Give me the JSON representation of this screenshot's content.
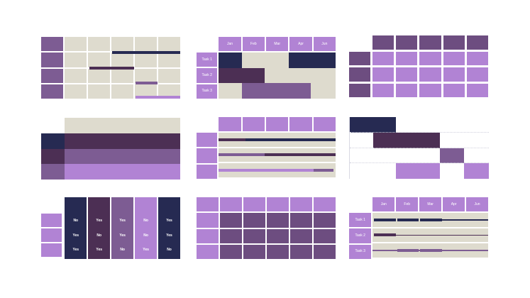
{
  "page": {
    "background": "#ffffff",
    "description": "3x3 gallery of purple Gantt chart and table slide templates"
  },
  "palette": {
    "navy": "#262a52",
    "dark_purple": "#4c2f54",
    "plum": "#6d4d80",
    "mid_purple": "#7d5c93",
    "light_purple": "#b183d4",
    "beige": "#dedbce",
    "white": "#ffffff",
    "grid_dotted": "#cfcfdc",
    "axis_line": "#d9d9e3",
    "text_on_fill": "#ffffff"
  },
  "months": [
    "Jan",
    "Feb",
    "Mar",
    "Apr",
    "Jun"
  ],
  "tasks": [
    "Task 1",
    "Task 2",
    "Task 3"
  ],
  "chart_data": [
    {
      "id": "gantt-grid",
      "type": "gantt",
      "position": "top-left",
      "rows": 4,
      "columns": 5,
      "colors": {
        "row_header": "mid_purple",
        "cell": "beige"
      },
      "bars": [
        {
          "y": 0.25,
          "start": 0.41,
          "end": 1.0,
          "color": "navy"
        },
        {
          "y": 0.5,
          "start": 0.21,
          "end": 0.6,
          "color": "dark_purple"
        },
        {
          "y": 0.75,
          "start": 0.61,
          "end": 0.8,
          "color": "mid_purple"
        },
        {
          "y": 1.0,
          "start": 0.61,
          "end": 1.0,
          "color": "light_purple"
        }
      ]
    },
    {
      "id": "gantt-blocks",
      "type": "gantt",
      "position": "top-center",
      "column_headers": "months",
      "row_headers": "tasks",
      "header_color": "light_purple",
      "body_color": "beige",
      "bars": [
        {
          "row": 0,
          "start": 0.0,
          "end": 0.2,
          "color": "navy"
        },
        {
          "row": 0,
          "start": 0.6,
          "end": 1.0,
          "color": "navy"
        },
        {
          "row": 1,
          "start": 0.0,
          "end": 0.39,
          "color": "dark_purple"
        },
        {
          "row": 2,
          "start": 0.2,
          "end": 0.79,
          "color": "mid_purple"
        }
      ]
    },
    {
      "id": "table-plum-header",
      "type": "table",
      "position": "top-right",
      "columns": 5,
      "rows": 3,
      "colors": {
        "column_header": "plum",
        "row_header": "plum",
        "body": "light_purple",
        "corner": "transparent"
      }
    },
    {
      "id": "stacked-bands",
      "type": "bar",
      "position": "middle-left",
      "header_width": 0.17,
      "top_band": {
        "color": "beige"
      },
      "rows": [
        {
          "header_color": "navy",
          "band_color": "dark_purple"
        },
        {
          "header_color": "dark_purple",
          "band_color": "mid_purple"
        },
        {
          "header_color": "mid_purple",
          "band_color": "light_purple"
        }
      ]
    },
    {
      "id": "gantt-thin-bars",
      "type": "gantt",
      "position": "middle-center",
      "column_headers": 5,
      "row_headers": 3,
      "header_color": "light_purple",
      "body_color": "beige",
      "rows": [
        {
          "segments": [
            {
              "start": 0.0,
              "end": 0.23,
              "color": "dark_purple"
            },
            {
              "start": 0.23,
              "end": 1.0,
              "color": "navy"
            }
          ]
        },
        {
          "segments": [
            {
              "start": 0.0,
              "end": 0.39,
              "color": "mid_purple"
            },
            {
              "start": 0.39,
              "end": 1.0,
              "color": "dark_purple"
            }
          ]
        },
        {
          "segments": [
            {
              "start": 0.0,
              "end": 0.81,
              "color": "light_purple"
            },
            {
              "start": 0.81,
              "end": 0.98,
              "color": "mid_purple"
            }
          ]
        }
      ]
    },
    {
      "id": "waterfall-gantt",
      "type": "gantt",
      "position": "middle-right",
      "background": "white",
      "gridlines": "dotted",
      "blocks": [
        {
          "row": 0,
          "start": 0.0,
          "end": 0.33,
          "color": "navy"
        },
        {
          "row": 1,
          "start": 0.17,
          "end": 0.65,
          "color": "dark_purple"
        },
        {
          "row": 2,
          "start": 0.65,
          "end": 0.82,
          "color": "mid_purple"
        },
        {
          "row": 3,
          "start": 0.33,
          "end": 0.65,
          "color": "light_purple"
        },
        {
          "row": 3,
          "start": 0.82,
          "end": 1.0,
          "color": "light_purple"
        }
      ]
    },
    {
      "id": "yes-no-matrix",
      "type": "table",
      "position": "bottom-left",
      "row_header_color": "light_purple",
      "row_count": 3,
      "columns": [
        {
          "color": "navy",
          "values": [
            "No",
            "Yes",
            "Yes"
          ]
        },
        {
          "color": "dark_purple",
          "values": [
            "Yes",
            "No",
            "Yes"
          ]
        },
        {
          "color": "mid_purple",
          "values": [
            "Yes",
            "Yes",
            "No"
          ]
        },
        {
          "color": "light_purple",
          "values": [
            "No",
            "No",
            "Yes"
          ]
        },
        {
          "color": "navy",
          "values": [
            "Yes",
            "Yes",
            "No"
          ]
        }
      ]
    },
    {
      "id": "purple-table",
      "type": "table",
      "position": "bottom-center",
      "columns": 5,
      "rows": 3,
      "colors": {
        "column_header": "light_purple",
        "row_header": "light_purple",
        "body": "plum",
        "corner": "light_purple"
      }
    },
    {
      "id": "timeline-gantt",
      "type": "gantt",
      "position": "bottom-right",
      "column_headers": "months",
      "row_headers": "tasks",
      "header_color": "light_purple",
      "body_color": "beige",
      "rows": [
        {
          "task": "Task 1",
          "line": {
            "start": 0.6,
            "end": 1.0,
            "color": "navy"
          },
          "segments": [
            {
              "start": 0.01,
              "end": 0.2,
              "color": "navy"
            },
            {
              "start": 0.21,
              "end": 0.4,
              "color": "navy"
            },
            {
              "start": 0.41,
              "end": 0.6,
              "color": "navy"
            }
          ]
        },
        {
          "task": "Task 2",
          "line": {
            "start": 0.2,
            "end": 1.0,
            "color": "dark_purple"
          },
          "segments": [
            {
              "start": 0.01,
              "end": 0.2,
              "color": "dark_purple"
            }
          ]
        },
        {
          "task": "Task 3",
          "line": {
            "start": 0.0,
            "end": 1.0,
            "color": "mid_purple"
          },
          "segments": [
            {
              "start": 0.21,
              "end": 0.4,
              "color": "mid_purple"
            },
            {
              "start": 0.41,
              "end": 0.6,
              "color": "mid_purple"
            }
          ]
        }
      ]
    }
  ]
}
